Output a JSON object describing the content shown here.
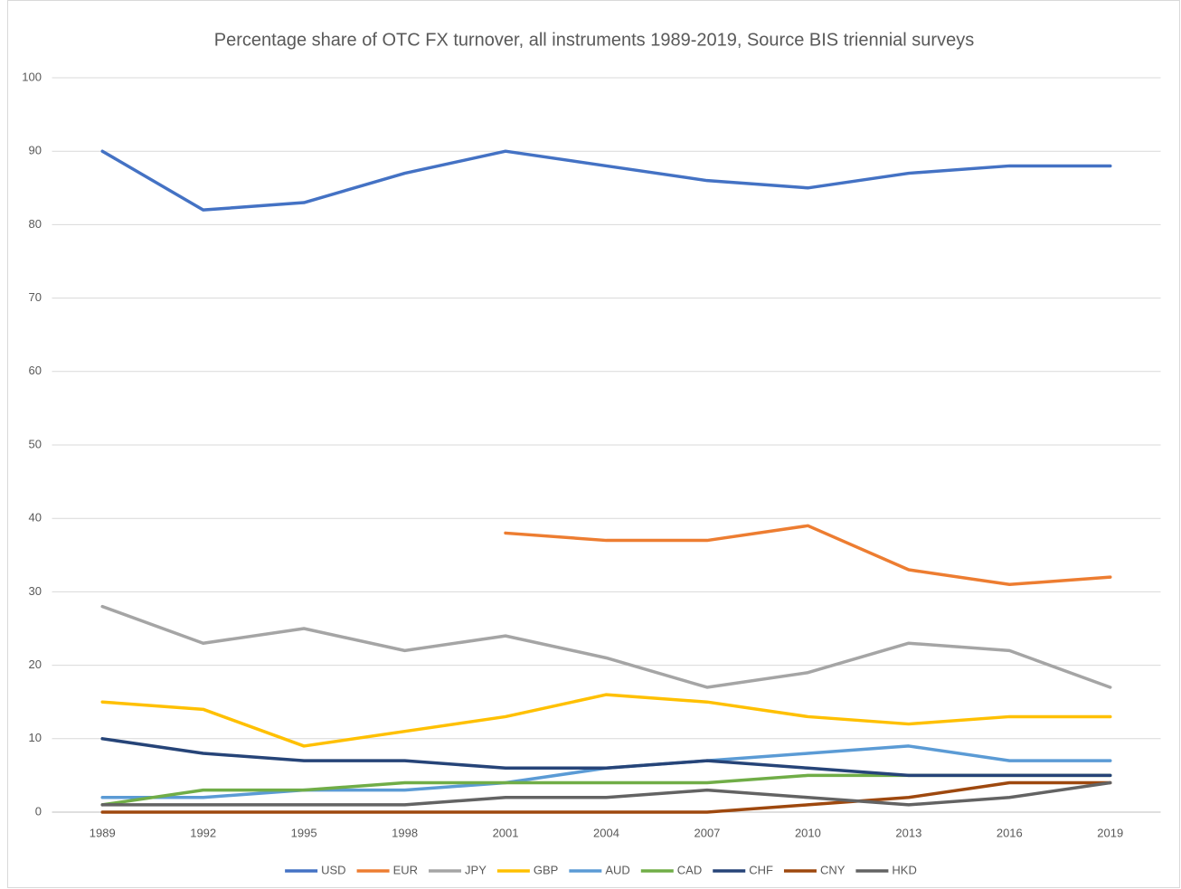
{
  "chart_data": {
    "type": "line",
    "title": "Percentage share of OTC FX turnover, all instruments 1989-2019, Source BIS triennial surveys",
    "categories": [
      "1989",
      "1992",
      "1995",
      "1998",
      "2001",
      "2004",
      "2007",
      "2010",
      "2013",
      "2016",
      "2019"
    ],
    "series": [
      {
        "name": "USD",
        "color": "#4472c4",
        "values": [
          90,
          82,
          83,
          87,
          90,
          88,
          86,
          85,
          87,
          88,
          88
        ]
      },
      {
        "name": "EUR",
        "color": "#ed7d31",
        "values": [
          null,
          null,
          null,
          null,
          38,
          37,
          37,
          39,
          33,
          31,
          32
        ]
      },
      {
        "name": "JPY",
        "color": "#a5a5a5",
        "values": [
          28,
          23,
          25,
          22,
          24,
          21,
          17,
          19,
          23,
          22,
          17
        ]
      },
      {
        "name": "GBP",
        "color": "#ffc000",
        "values": [
          15,
          14,
          9,
          11,
          13,
          16,
          15,
          13,
          12,
          13,
          13
        ]
      },
      {
        "name": "AUD",
        "color": "#5b9bd5",
        "values": [
          2,
          2,
          3,
          3,
          4,
          6,
          7,
          8,
          9,
          7,
          7
        ]
      },
      {
        "name": "CAD",
        "color": "#70ad47",
        "values": [
          1,
          3,
          3,
          4,
          4,
          4,
          4,
          5,
          5,
          5,
          5
        ]
      },
      {
        "name": "CHF",
        "color": "#264478",
        "values": [
          10,
          8,
          7,
          7,
          6,
          6,
          7,
          6,
          5,
          5,
          5
        ]
      },
      {
        "name": "CNY",
        "color": "#9e480e",
        "values": [
          0,
          0,
          0,
          0,
          0,
          0,
          0,
          1,
          2,
          4,
          4
        ]
      },
      {
        "name": "HKD",
        "color": "#636363",
        "values": [
          1,
          1,
          1,
          1,
          2,
          2,
          3,
          2,
          1,
          2,
          4
        ]
      }
    ],
    "ylim": [
      0,
      100
    ],
    "yticks": [
      0,
      10,
      20,
      30,
      40,
      50,
      60,
      70,
      80,
      90,
      100
    ],
    "grid": true,
    "legend": "bottom"
  }
}
